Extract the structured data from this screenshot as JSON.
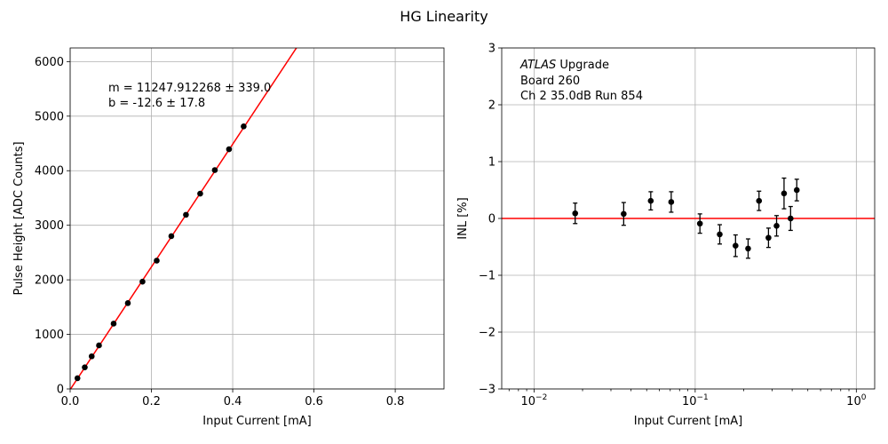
{
  "figure": {
    "suptitle": "HG Linearity"
  },
  "chart_data": [
    {
      "type": "scatter",
      "title": "",
      "xlabel": "Input Current [mA]",
      "ylabel": "Pulse Height [ADC Counts]",
      "xlim": [
        0,
        0.92
      ],
      "ylim": [
        0,
        6250
      ],
      "xscale": "linear",
      "grid": true,
      "xticks": [
        0.0,
        0.2,
        0.4,
        0.6,
        0.8
      ],
      "xtick_labels": [
        "0.0",
        "0.2",
        "0.4",
        "0.6",
        "0.8"
      ],
      "yticks": [
        0,
        1000,
        2000,
        3000,
        4000,
        5000,
        6000
      ],
      "ytick_labels": [
        "0",
        "1000",
        "2000",
        "3000",
        "4000",
        "5000",
        "6000"
      ],
      "fit_line": {
        "slope": 11247.912268,
        "intercept": -12.6,
        "color": "#ff0000"
      },
      "annotation": [
        "m = 11247.912268 ± 339.0",
        "b = -12.6 ± 17.8"
      ],
      "series": [
        {
          "marker_color": "#000000",
          "points": [
            {
              "x": 0.018,
              "y": 197
            },
            {
              "x": 0.036,
              "y": 396
            },
            {
              "x": 0.053,
              "y": 598
            },
            {
              "x": 0.071,
              "y": 798
            },
            {
              "x": 0.107,
              "y": 1197
            },
            {
              "x": 0.142,
              "y": 1573
            },
            {
              "x": 0.178,
              "y": 1966
            },
            {
              "x": 0.213,
              "y": 2352
            },
            {
              "x": 0.249,
              "y": 2801
            },
            {
              "x": 0.285,
              "y": 3192
            },
            {
              "x": 0.32,
              "y": 3580
            },
            {
              "x": 0.356,
              "y": 4012
            },
            {
              "x": 0.391,
              "y": 4394
            },
            {
              "x": 0.427,
              "y": 4812
            }
          ]
        }
      ]
    },
    {
      "type": "scatter",
      "title": "",
      "xlabel": "Input Current [mA]",
      "ylabel": "INL [%]",
      "xlim": [
        0.0063,
        1.3
      ],
      "ylim": [
        -3,
        3
      ],
      "xscale": "log",
      "grid": true,
      "xticks": [
        0.01,
        0.1,
        1
      ],
      "xtick_labels": [
        "10",
        "10",
        "10"
      ],
      "xtick_exponents": [
        "−2",
        "−1",
        "0"
      ],
      "yticks": [
        -3,
        -2,
        -1,
        0,
        1,
        2,
        3
      ],
      "ytick_labels": [
        "−3",
        "−2",
        "−1",
        "0",
        "1",
        "2",
        "3"
      ],
      "reference_line": {
        "y": 0,
        "color": "#ff0000"
      },
      "annotation": {
        "experiment": "ATLAS",
        "experiment_suffix": " Upgrade",
        "lines": [
          " Board 260",
          " Ch 2 35.0dB  Run 854"
        ]
      },
      "series": [
        {
          "marker_color": "#000000",
          "points": [
            {
              "x": 0.018,
              "y": 0.09,
              "err": 0.18
            },
            {
              "x": 0.036,
              "y": 0.08,
              "err": 0.2
            },
            {
              "x": 0.053,
              "y": 0.31,
              "err": 0.16
            },
            {
              "x": 0.071,
              "y": 0.29,
              "err": 0.18
            },
            {
              "x": 0.107,
              "y": -0.09,
              "err": 0.17
            },
            {
              "x": 0.142,
              "y": -0.28,
              "err": 0.17
            },
            {
              "x": 0.178,
              "y": -0.48,
              "err": 0.19
            },
            {
              "x": 0.213,
              "y": -0.53,
              "err": 0.17
            },
            {
              "x": 0.249,
              "y": 0.31,
              "err": 0.17
            },
            {
              "x": 0.285,
              "y": -0.34,
              "err": 0.17
            },
            {
              "x": 0.32,
              "y": -0.13,
              "err": 0.18
            },
            {
              "x": 0.356,
              "y": 0.44,
              "err": 0.27
            },
            {
              "x": 0.391,
              "y": 0.0,
              "err": 0.21
            },
            {
              "x": 0.427,
              "y": 0.5,
              "err": 0.19
            }
          ]
        }
      ]
    }
  ]
}
